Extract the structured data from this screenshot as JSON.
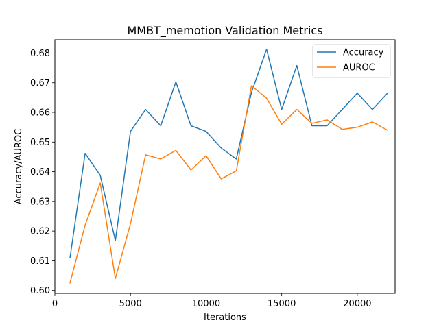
{
  "chart_data": {
    "type": "line",
    "title": "MMBT_memotion Validation Metrics",
    "xlabel": "Iterations",
    "ylabel": "Accuracy/AUROC",
    "xlim": [
      0,
      22500
    ],
    "ylim": [
      0.599,
      0.6845
    ],
    "x_ticks": [
      0,
      5000,
      10000,
      15000,
      20000
    ],
    "y_ticks": [
      0.6,
      0.61,
      0.62,
      0.63,
      0.64,
      0.65,
      0.66,
      0.67,
      0.68
    ],
    "grid": false,
    "legend_position": "top-right",
    "x": [
      1000,
      2000,
      3000,
      4000,
      5000,
      6000,
      7000,
      8000,
      9000,
      10000,
      11000,
      12000,
      13000,
      14000,
      15000,
      16000,
      17000,
      18000,
      19000,
      20000,
      21000,
      22000
    ],
    "series": [
      {
        "name": "Accuracy",
        "color": "#1f77b4",
        "values": [
          0.611,
          0.6462,
          0.6388,
          0.6168,
          0.6536,
          0.661,
          0.6555,
          0.6703,
          0.6555,
          0.6536,
          0.648,
          0.6443,
          0.6667,
          0.6813,
          0.661,
          0.6758,
          0.6555,
          0.6555,
          0.661,
          0.6665,
          0.661,
          0.6665
        ]
      },
      {
        "name": "AUROC",
        "color": "#ff7f0e",
        "values": [
          0.6025,
          0.622,
          0.6362,
          0.604,
          0.6225,
          0.6457,
          0.6443,
          0.6472,
          0.6406,
          0.6454,
          0.6376,
          0.6403,
          0.669,
          0.6648,
          0.656,
          0.661,
          0.6563,
          0.6575,
          0.6543,
          0.655,
          0.6568,
          0.654
        ]
      }
    ]
  }
}
